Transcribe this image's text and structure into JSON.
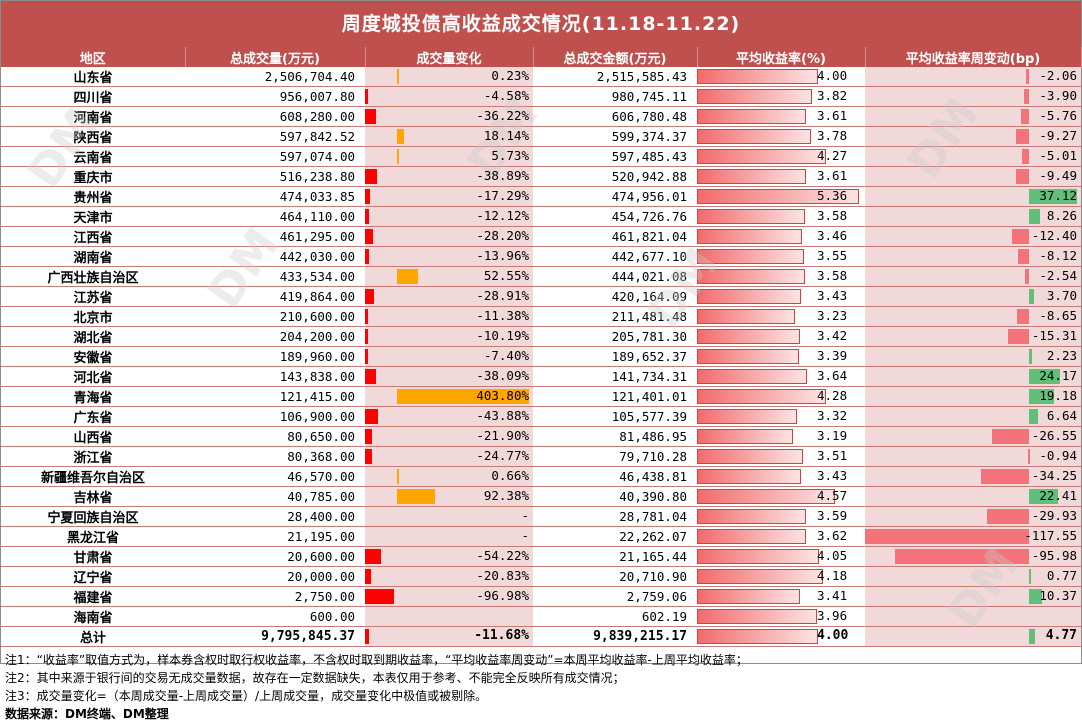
{
  "title": "周度城投债高收益成交情况(11.18-11.22)",
  "headers": [
    "地区",
    "总成交量(万元)",
    "成交量变化",
    "总成交金额(万元)",
    "平均收益率(%)",
    "平均收益率周变动(bp)"
  ],
  "rows": [
    {
      "region": "山东省",
      "volume": "2,506,704.40",
      "change": "0.23%",
      "change_val": 0.23,
      "amount": "2,515,585.43",
      "yield": "4.00",
      "yield_val": 4.0,
      "bp": "-2.06",
      "bp_val": -2.06
    },
    {
      "region": "四川省",
      "volume": "956,007.80",
      "change": "-4.58%",
      "change_val": -4.58,
      "amount": "980,745.11",
      "yield": "3.82",
      "yield_val": 3.82,
      "bp": "-3.90",
      "bp_val": -3.9
    },
    {
      "region": "河南省",
      "volume": "608,280.00",
      "change": "-36.22%",
      "change_val": -36.22,
      "amount": "606,780.48",
      "yield": "3.61",
      "yield_val": 3.61,
      "bp": "-5.76",
      "bp_val": -5.76
    },
    {
      "region": "陕西省",
      "volume": "597,842.52",
      "change": "18.14%",
      "change_val": 18.14,
      "amount": "599,374.37",
      "yield": "3.78",
      "yield_val": 3.78,
      "bp": "-9.27",
      "bp_val": -9.27
    },
    {
      "region": "云南省",
      "volume": "597,074.00",
      "change": "5.73%",
      "change_val": 5.73,
      "amount": "597,485.43",
      "yield": "4.27",
      "yield_val": 4.27,
      "bp": "-5.01",
      "bp_val": -5.01
    },
    {
      "region": "重庆市",
      "volume": "516,238.80",
      "change": "-38.89%",
      "change_val": -38.89,
      "amount": "520,942.88",
      "yield": "3.61",
      "yield_val": 3.61,
      "bp": "-9.49",
      "bp_val": -9.49
    },
    {
      "region": "贵州省",
      "volume": "474,033.85",
      "change": "-17.29%",
      "change_val": -17.29,
      "amount": "474,956.01",
      "yield": "5.36",
      "yield_val": 5.36,
      "bp": "37.12",
      "bp_val": 37.12
    },
    {
      "region": "天津市",
      "volume": "464,110.00",
      "change": "-12.12%",
      "change_val": -12.12,
      "amount": "454,726.76",
      "yield": "3.58",
      "yield_val": 3.58,
      "bp": "8.26",
      "bp_val": 8.26
    },
    {
      "region": "江西省",
      "volume": "461,295.00",
      "change": "-28.20%",
      "change_val": -28.2,
      "amount": "461,821.04",
      "yield": "3.46",
      "yield_val": 3.46,
      "bp": "-12.40",
      "bp_val": -12.4
    },
    {
      "region": "湖南省",
      "volume": "442,030.00",
      "change": "-13.96%",
      "change_val": -13.96,
      "amount": "442,677.10",
      "yield": "3.55",
      "yield_val": 3.55,
      "bp": "-8.12",
      "bp_val": -8.12
    },
    {
      "region": "广西壮族自治区",
      "volume": "433,534.00",
      "change": "52.55%",
      "change_val": 52.55,
      "amount": "444,021.08",
      "yield": "3.58",
      "yield_val": 3.58,
      "bp": "-2.54",
      "bp_val": -2.54
    },
    {
      "region": "江苏省",
      "volume": "419,864.00",
      "change": "-28.91%",
      "change_val": -28.91,
      "amount": "420,164.09",
      "yield": "3.43",
      "yield_val": 3.43,
      "bp": "3.70",
      "bp_val": 3.7
    },
    {
      "region": "北京市",
      "volume": "210,600.00",
      "change": "-11.38%",
      "change_val": -11.38,
      "amount": "211,481.48",
      "yield": "3.23",
      "yield_val": 3.23,
      "bp": "-8.65",
      "bp_val": -8.65
    },
    {
      "region": "湖北省",
      "volume": "204,200.00",
      "change": "-10.19%",
      "change_val": -10.19,
      "amount": "205,781.30",
      "yield": "3.42",
      "yield_val": 3.42,
      "bp": "-15.31",
      "bp_val": -15.31
    },
    {
      "region": "安徽省",
      "volume": "189,960.00",
      "change": "-7.40%",
      "change_val": -7.4,
      "amount": "189,652.37",
      "yield": "3.39",
      "yield_val": 3.39,
      "bp": "2.23",
      "bp_val": 2.23
    },
    {
      "region": "河北省",
      "volume": "143,838.00",
      "change": "-38.09%",
      "change_val": -38.09,
      "amount": "141,734.31",
      "yield": "3.64",
      "yield_val": 3.64,
      "bp": "24.17",
      "bp_val": 24.17
    },
    {
      "region": "青海省",
      "volume": "121,415.00",
      "change": "403.80%",
      "change_val": 403.8,
      "amount": "121,401.01",
      "yield": "4.28",
      "yield_val": 4.28,
      "bp": "19.18",
      "bp_val": 19.18
    },
    {
      "region": "广东省",
      "volume": "106,900.00",
      "change": "-43.88%",
      "change_val": -43.88,
      "amount": "105,577.39",
      "yield": "3.32",
      "yield_val": 3.32,
      "bp": "6.64",
      "bp_val": 6.64
    },
    {
      "region": "山西省",
      "volume": "80,650.00",
      "change": "-21.90%",
      "change_val": -21.9,
      "amount": "81,486.95",
      "yield": "3.19",
      "yield_val": 3.19,
      "bp": "-26.55",
      "bp_val": -26.55
    },
    {
      "region": "浙江省",
      "volume": "80,368.00",
      "change": "-24.77%",
      "change_val": -24.77,
      "amount": "79,710.28",
      "yield": "3.51",
      "yield_val": 3.51,
      "bp": "-0.94",
      "bp_val": -0.94
    },
    {
      "region": "新疆维吾尔自治区",
      "volume": "46,570.00",
      "change": "0.66%",
      "change_val": 0.66,
      "amount": "46,438.81",
      "yield": "3.43",
      "yield_val": 3.43,
      "bp": "-34.25",
      "bp_val": -34.25
    },
    {
      "region": "吉林省",
      "volume": "40,785.00",
      "change": "92.38%",
      "change_val": 92.38,
      "amount": "40,390.80",
      "yield": "4.57",
      "yield_val": 4.57,
      "bp": "22.41",
      "bp_val": 22.41
    },
    {
      "region": "宁夏回族自治区",
      "volume": "28,400.00",
      "change": "-",
      "change_val": 0,
      "amount": "28,781.04",
      "yield": "3.59",
      "yield_val": 3.59,
      "bp": "-29.93",
      "bp_val": -29.93
    },
    {
      "region": "黑龙江省",
      "volume": "21,195.00",
      "change": "-",
      "change_val": 0,
      "amount": "22,262.07",
      "yield": "3.62",
      "yield_val": 3.62,
      "bp": "-117.55",
      "bp_val": -117.55
    },
    {
      "region": "甘肃省",
      "volume": "20,600.00",
      "change": "-54.22%",
      "change_val": -54.22,
      "amount": "21,165.44",
      "yield": "4.05",
      "yield_val": 4.05,
      "bp": "-95.98",
      "bp_val": -95.98
    },
    {
      "region": "辽宁省",
      "volume": "20,000.00",
      "change": "-20.83%",
      "change_val": -20.83,
      "amount": "20,710.90",
      "yield": "4.18",
      "yield_val": 4.18,
      "bp": "0.77",
      "bp_val": 0.77
    },
    {
      "region": "福建省",
      "volume": "2,750.00",
      "change": "-96.98%",
      "change_val": -96.98,
      "amount": "2,759.06",
      "yield": "3.41",
      "yield_val": 3.41,
      "bp": "10.37",
      "bp_val": 10.37
    },
    {
      "region": "海南省",
      "volume": "600.00",
      "change": "",
      "change_val": 0,
      "amount": "602.19",
      "yield": "3.96",
      "yield_val": 3.96,
      "bp": "",
      "bp_val": 0
    }
  ],
  "total": {
    "region": "总计",
    "volume": "9,795,845.37",
    "change": "-11.68%",
    "change_val": -11.68,
    "amount": "9,839,215.17",
    "yield": "4.00",
    "yield_val": 4.0,
    "bp": "4.77",
    "bp_val": 4.77
  },
  "notes": [
    "注1：“收益率”取值方式为，样本券含权时取行权收益率，不含权时取到期收益率，“平均收益率周变动”=本周平均收益率-上周平均收益率；",
    "注2：其中来源于银行间的交易无成交量数据，故存在一定数据缺失，本表仅用于参考、不能完全反映所有成交情况；",
    "注3：成交量变化=（本周成交量-上周成交量）/上周成交量，成交量变化中极值或被剔除。"
  ],
  "source": "数据来源：DM终端、DM整理",
  "watermark": "DM",
  "colors": {
    "header_bg": "#c0504d",
    "bar_bg": "#f2d9d9",
    "neg_bar": "#ff0000",
    "pos_bar": "#ffa500",
    "bp_neg": "#f4737a",
    "bp_pos": "#63be7b"
  }
}
